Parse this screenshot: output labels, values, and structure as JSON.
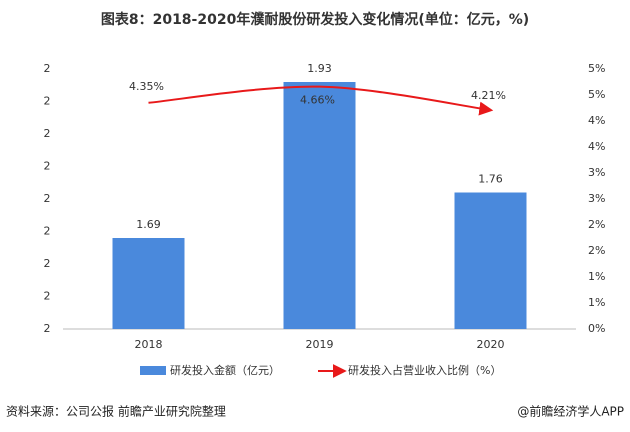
{
  "chart_data": {
    "type": "bar-line",
    "title": "图表8：2018-2020年濮耐股份研发投入变化情况(单位：亿元，%)",
    "categories": [
      "2018",
      "2019",
      "2020"
    ],
    "series": [
      {
        "name": "研发投入金额（亿元）",
        "type": "bar",
        "color": "#4a89dc",
        "values": [
          1.69,
          1.93,
          1.76
        ]
      },
      {
        "name": "研发投入占营业收入比例（%）",
        "type": "line",
        "axis": "y2",
        "color": "#e8191a",
        "values": [
          4.35,
          4.66,
          4.21
        ],
        "value_labels": [
          "4.35%",
          "4.66%",
          "4.21%"
        ]
      }
    ],
    "ylim": [
      1.55,
      1.95
    ],
    "yticks": [
      {
        "value": 1.55,
        "label": "2"
      },
      {
        "value": 1.6,
        "label": "2"
      },
      {
        "value": 1.65,
        "label": "2"
      },
      {
        "value": 1.7,
        "label": "2"
      },
      {
        "value": 1.75,
        "label": "2"
      },
      {
        "value": 1.8,
        "label": "2"
      },
      {
        "value": 1.85,
        "label": "2"
      },
      {
        "value": 1.9,
        "label": "2"
      },
      {
        "value": 1.95,
        "label": "2"
      }
    ],
    "y2lim": [
      0,
      5
    ],
    "y2ticks": [
      {
        "value": 0,
        "label": "0%"
      },
      {
        "value": 0.5,
        "label": "1%"
      },
      {
        "value": 1,
        "label": "1%"
      },
      {
        "value": 1.5,
        "label": "2%"
      },
      {
        "value": 2,
        "label": "2%"
      },
      {
        "value": 2.5,
        "label": "3%"
      },
      {
        "value": 3,
        "label": "3%"
      },
      {
        "value": 3.5,
        "label": "4%"
      },
      {
        "value": 4,
        "label": "4%"
      },
      {
        "value": 4.5,
        "label": "5%"
      },
      {
        "value": 5,
        "label": "5%"
      }
    ],
    "grid": false,
    "legend": "bottom",
    "source": "资料来源：公司公报 前瞻产业研究院整理",
    "credit": "@前瞻经济学人APP"
  }
}
